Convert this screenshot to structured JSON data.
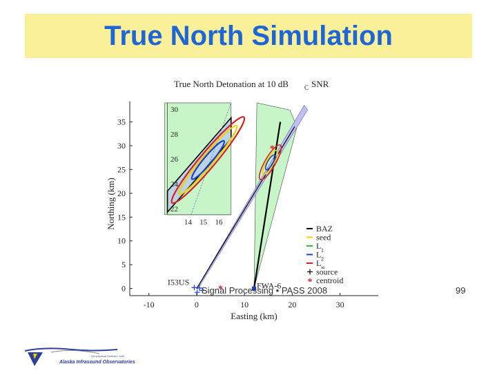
{
  "slide": {
    "title": "True North Simulation",
    "footer_center": "Signal Processing • PASS 2008",
    "page_number": "99"
  },
  "logo": {
    "text": "Alaska Infrasound Observatories",
    "subtext": "Geophysical Institute / UAF"
  },
  "chart_data": {
    "type": "scatter",
    "title": "True North Detonation at 10 dB",
    "title_sub": "C",
    "title_end": "SNR",
    "xlabel": "Easting (km)",
    "ylabel": "Northing (km)",
    "xlim": [
      -14,
      38
    ],
    "ylim": [
      -1.5,
      40
    ],
    "xticks": [
      -10,
      0,
      10,
      20,
      30
    ],
    "yticks": [
      0,
      5,
      10,
      15,
      20,
      25,
      30,
      35
    ],
    "stations": [
      {
        "name": "I53US",
        "x": 0,
        "y": 0
      },
      {
        "name": "FWA-6",
        "x": 12,
        "y": 0
      }
    ],
    "source_marks": [
      [
        -0.5,
        0.2
      ],
      [
        0.6,
        0.1
      ],
      [
        1.2,
        -0.4
      ],
      [
        0.1,
        -0.8
      ]
    ],
    "centroid_marks": [
      [
        5,
        0
      ],
      [
        15.8,
        29.5
      ]
    ],
    "baz_lines": [
      {
        "x": [
          0,
          20.5
        ],
        "y": [
          0,
          34
        ]
      },
      {
        "x": [
          12,
          17.5
        ],
        "y": [
          0,
          35
        ]
      }
    ],
    "main_ellipses": [
      {
        "cx": 15.4,
        "cy": 26.5,
        "rx": 5.2,
        "ry": 0.5,
        "angle_deg": 60,
        "color": "#d82020"
      },
      {
        "cx": 15.4,
        "cy": 26.5,
        "rx": 3.6,
        "ry": 0.35,
        "angle_deg": 60,
        "color": "#f0d000"
      },
      {
        "cx": 15.4,
        "cy": 26.5,
        "rx": 2.2,
        "ry": 0.25,
        "angle_deg": 60,
        "color": "#1f3fcf"
      }
    ],
    "inset": {
      "xlim": [
        13.2,
        16.8
      ],
      "ylim": [
        21.5,
        30.5
      ],
      "xticks": [
        14,
        15,
        16
      ],
      "yticks": [
        22,
        24,
        26,
        28,
        30
      ],
      "ellipses": [
        {
          "cx": 15.3,
          "cy": 25.9,
          "rx": 4.5,
          "ry": 0.42,
          "color": "#d82020"
        },
        {
          "cx": 15.3,
          "cy": 25.9,
          "rx": 3.6,
          "ry": 0.3,
          "color": "#f0d000"
        },
        {
          "cx": 15.3,
          "cy": 25.9,
          "rx": 2.0,
          "ry": 0.22,
          "color": "#1f3fcf"
        }
      ]
    },
    "legend": {
      "position": "bottom-right",
      "entries": [
        {
          "label": "BAZ",
          "color": "#000000",
          "marker": "line"
        },
        {
          "label": "seed",
          "color": "#f0d000",
          "marker": "line"
        },
        {
          "label": "L",
          "sub": "1",
          "color": "#2fbf2f",
          "marker": "line"
        },
        {
          "label": "L",
          "sub": "2",
          "color": "#1f3fcf",
          "marker": "line"
        },
        {
          "label": "L",
          "sub": "∞",
          "color": "#d82020",
          "marker": "line"
        },
        {
          "label": "source",
          "color": "#1f3fcf",
          "marker": "source"
        },
        {
          "label": "centroid",
          "color": "#d82020",
          "marker": "star"
        }
      ]
    },
    "colors": {
      "green_region": "#c8f5c8",
      "blue_region": "#b8d4e6",
      "purple_band": "#bfbff0"
    }
  }
}
